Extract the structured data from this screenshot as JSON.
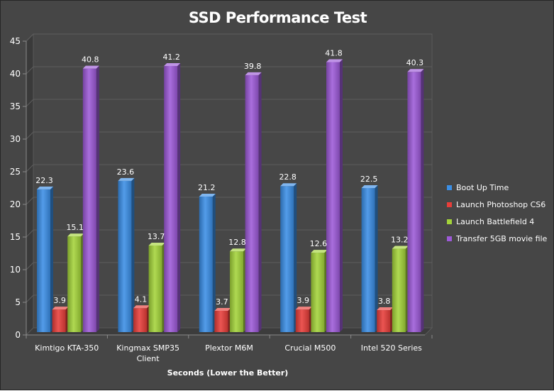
{
  "chart_data": {
    "type": "bar",
    "title": "SSD Performance Test",
    "xlabel": "Seconds (Lower the Better)",
    "ylabel": "",
    "ylim": [
      0,
      45
    ],
    "yticks": [
      "0",
      "5",
      "10",
      "15",
      "20",
      "25",
      "30",
      "35",
      "40",
      "45"
    ],
    "categories": [
      "Kimtigo KTA-350",
      "Kingmax SMP35 Client",
      "Plextor M6M",
      "Crucial M500",
      "Intel 520 Series"
    ],
    "category_lines": [
      [
        "Kimtigo KTA-350"
      ],
      [
        "Kingmax SMP35",
        "Client"
      ],
      [
        "Plextor M6M"
      ],
      [
        "Crucial M500"
      ],
      [
        "Intel 520 Series"
      ]
    ],
    "series": [
      {
        "name": "Boot Up Time",
        "color": "#3b8fe6",
        "values": [
          22.3,
          23.6,
          21.2,
          22.8,
          22.5
        ]
      },
      {
        "name": "Launch Photoshop CS6",
        "color": "#e83e3a",
        "values": [
          3.9,
          4.1,
          3.7,
          3.9,
          3.8
        ]
      },
      {
        "name": "Launch Battlefield 4",
        "color": "#a4d43a",
        "values": [
          15.1,
          13.7,
          12.8,
          12.6,
          13.2
        ]
      },
      {
        "name": "Transfer 5GB movie file",
        "color": "#9d5ad8",
        "values": [
          40.8,
          41.2,
          39.8,
          41.8,
          40.3
        ]
      }
    ],
    "grid": true,
    "legend_position": "right",
    "data_labels": true
  }
}
